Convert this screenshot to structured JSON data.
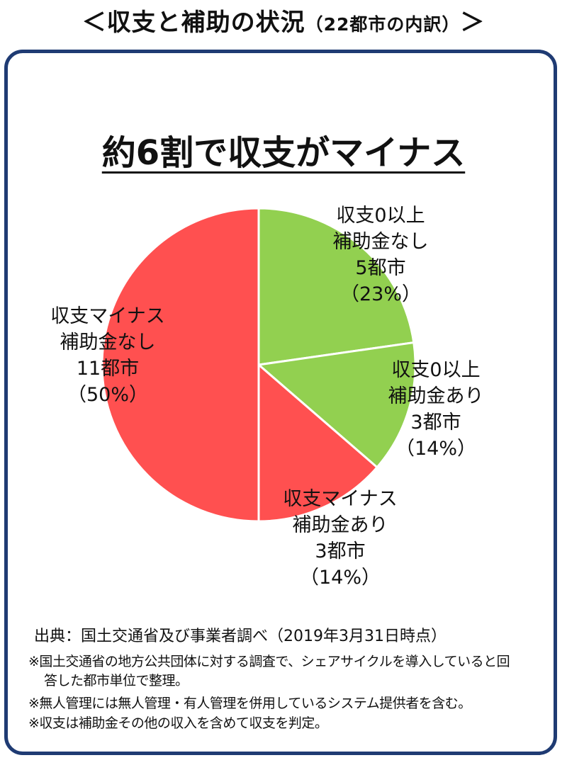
{
  "page": {
    "title": "＜収支と補助の状況",
    "title_sub": "（22都市の内訳）",
    "title_end": "＞"
  },
  "headline": "約6割で収支がマイナス",
  "chart_data": {
    "type": "pie",
    "start": "12 o'clock",
    "direction": "clockwise",
    "slices": [
      {
        "lines": [
          "収支0以上",
          "補助金なし",
          "5都市",
          "（23%）"
        ],
        "count": 5,
        "percent": 23,
        "color": "#92d050"
      },
      {
        "lines": [
          "収支0以上",
          "補助金あり",
          "3都市",
          "（14%）"
        ],
        "count": 3,
        "percent": 14,
        "color": "#92d050"
      },
      {
        "lines": [
          "収支マイナス",
          "補助金あり",
          "3都市",
          "（14%）"
        ],
        "count": 3,
        "percent": 14,
        "color": "#ff5050"
      },
      {
        "lines": [
          "収支マイナス",
          "補助金なし",
          "11都市",
          "（50%）"
        ],
        "count": 11,
        "percent": 50,
        "color": "#ff5050"
      }
    ],
    "total": 22
  },
  "source": "出典：国土交通省及び事業者調べ（2019年3月31日時点）",
  "notes": {
    "n1a": "※国土交通省の地方公共団体に対する調査で、シェアサイクルを導入していると回",
    "n1b": "答した都市単位で整理。",
    "n2": "※無人管理には無人管理・有人管理を併用しているシステム提供者を含む。",
    "n3": "※収支は補助金その他の収入を含めて収支を判定。"
  }
}
